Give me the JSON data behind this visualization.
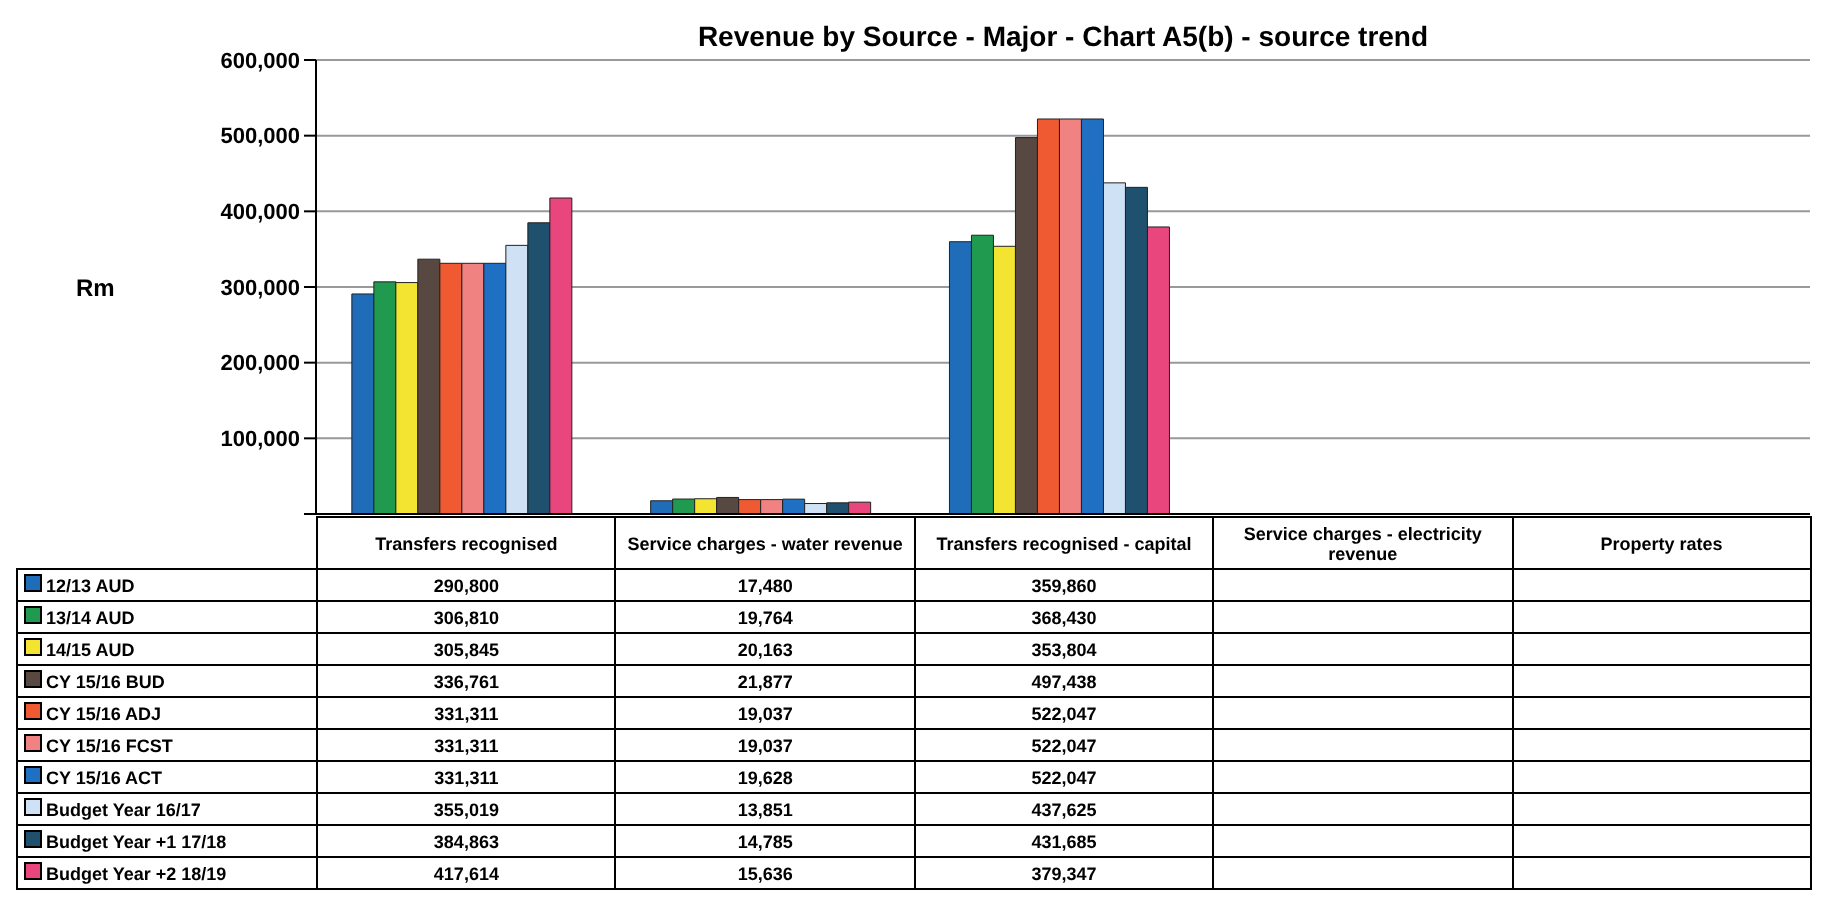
{
  "chart_data": {
    "type": "bar",
    "title": "Revenue by Source - Major - Chart A5(b) - source trend",
    "ylabel": "Rm",
    "categories": [
      "Transfers recognised",
      "Service charges - water revenue",
      "Transfers recognised - capital",
      "Service charges - electricity revenue",
      "Property rates"
    ],
    "series": [
      {
        "name": "12/13 AUD",
        "color": "#1f6db8",
        "values": [
          290800,
          17480,
          359860,
          null,
          null
        ],
        "value_labels": [
          "290,800",
          "17,480",
          "359,860",
          null,
          null
        ]
      },
      {
        "name": "13/14 AUD",
        "color": "#1f9a4e",
        "values": [
          306810,
          19764,
          368430,
          null,
          null
        ],
        "value_labels": [
          "306,810",
          "19,764",
          "368,430",
          null,
          null
        ]
      },
      {
        "name": "14/15 AUD",
        "color": "#f2e430",
        "values": [
          305845,
          20163,
          353804,
          null,
          null
        ],
        "value_labels": [
          "305,845",
          "20,163",
          "353,804",
          null,
          null
        ]
      },
      {
        "name": "CY 15/16 BUD",
        "color": "#574842",
        "values": [
          336761,
          21877,
          497438,
          null,
          null
        ],
        "value_labels": [
          "336,761",
          "21,877",
          "497,438",
          null,
          null
        ]
      },
      {
        "name": "CY 15/16 ADJ",
        "color": "#f05a32",
        "values": [
          331311,
          19037,
          522047,
          null,
          null
        ],
        "value_labels": [
          "331,311",
          "19,037",
          "522,047",
          null,
          null
        ]
      },
      {
        "name": "CY 15/16 FCST",
        "color": "#f08282",
        "values": [
          331311,
          19037,
          522047,
          null,
          null
        ],
        "value_labels": [
          "331,311",
          "19,037",
          "522,047",
          null,
          null
        ]
      },
      {
        "name": "CY 15/16 ACT",
        "color": "#1f70c2",
        "values": [
          331311,
          19628,
          522047,
          null,
          null
        ],
        "value_labels": [
          "331,311",
          "19,628",
          "522,047",
          null,
          null
        ]
      },
      {
        "name": "Budget Year 16/17",
        "color": "#cfe1f5",
        "values": [
          355019,
          13851,
          437625,
          null,
          null
        ],
        "value_labels": [
          "355,019",
          "13,851",
          "437,625",
          null,
          null
        ]
      },
      {
        "name": "Budget Year +1 17/18",
        "color": "#1f506e",
        "values": [
          384863,
          14785,
          431685,
          null,
          null
        ],
        "value_labels": [
          "384,863",
          "14,785",
          "431,685",
          null,
          null
        ]
      },
      {
        "name": "Budget Year +2 18/19",
        "color": "#e8467c",
        "values": [
          417614,
          15636,
          379347,
          null,
          null
        ],
        "value_labels": [
          "417,614",
          "15,636",
          "379,347",
          null,
          null
        ]
      }
    ],
    "ylim": [
      0,
      600000
    ],
    "yticks": [
      {
        "value": 0,
        "label": null
      },
      {
        "value": 100000,
        "label": "100,000"
      },
      {
        "value": 200000,
        "label": "200,000"
      },
      {
        "value": 300000,
        "label": "300,000"
      },
      {
        "value": 400000,
        "label": "400,000"
      },
      {
        "value": 500000,
        "label": "500,000"
      },
      {
        "value": 600000,
        "label": "600,000"
      }
    ],
    "grid": "y",
    "legend": "bottom"
  }
}
